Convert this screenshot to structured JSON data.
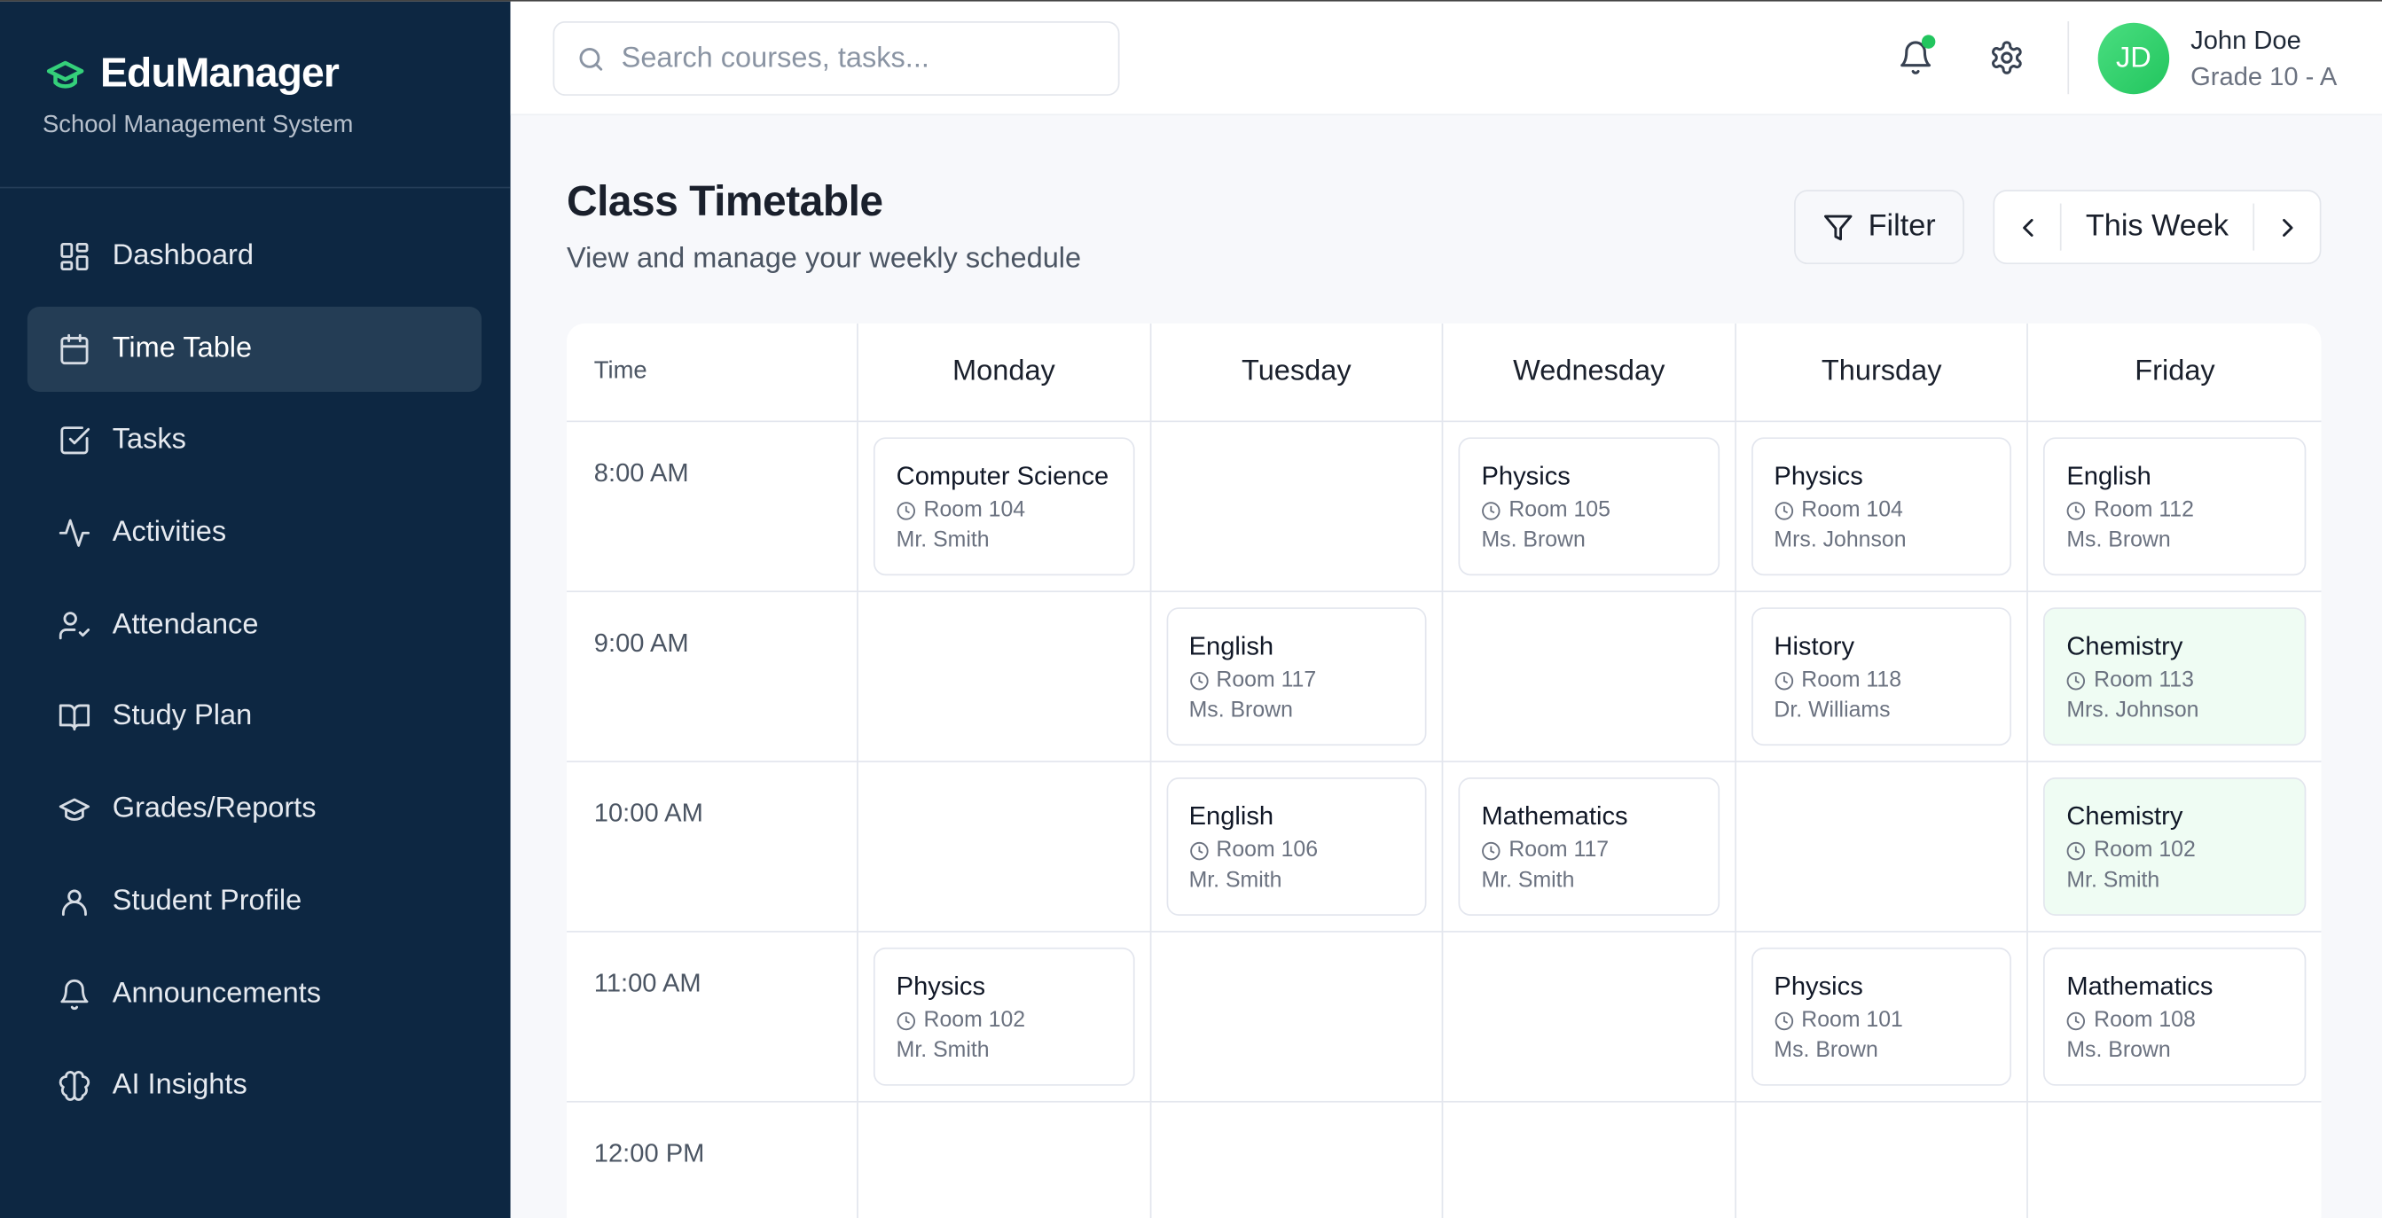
{
  "sidebar": {
    "brand": "EduManager",
    "tagline": "School Management System",
    "items": [
      {
        "label": "Dashboard",
        "icon": "dashboard-icon"
      },
      {
        "label": "Time Table",
        "icon": "calendar-icon",
        "active": true
      },
      {
        "label": "Tasks",
        "icon": "checkbox-icon"
      },
      {
        "label": "Activities",
        "icon": "activity-icon"
      },
      {
        "label": "Attendance",
        "icon": "user-check-icon"
      },
      {
        "label": "Study Plan",
        "icon": "book-icon"
      },
      {
        "label": "Grades/Reports",
        "icon": "graduation-cap-icon"
      },
      {
        "label": "Student Profile",
        "icon": "user-icon"
      },
      {
        "label": "Announcements",
        "icon": "bell-icon"
      },
      {
        "label": "AI Insights",
        "icon": "brain-icon"
      }
    ]
  },
  "header": {
    "search_placeholder": "Search courses, tasks...",
    "user": {
      "initials": "JD",
      "name": "John Doe",
      "grade": "Grade 10 - A"
    },
    "notification_dot_color": "#22c55e"
  },
  "page": {
    "title": "Class Timetable",
    "subtitle": "View and manage your weekly schedule",
    "filter_label": "Filter",
    "week_label": "This Week"
  },
  "timetable": {
    "time_header": "Time",
    "days": [
      "Monday",
      "Tuesday",
      "Wednesday",
      "Thursday",
      "Friday"
    ],
    "highlight_color": "#effcf3",
    "rows": [
      {
        "time": "8:00 AM",
        "cells": [
          {
            "subject": "Computer Science",
            "room": "Room 104",
            "teacher": "Mr. Smith"
          },
          null,
          {
            "subject": "Physics",
            "room": "Room 105",
            "teacher": "Ms. Brown"
          },
          {
            "subject": "Physics",
            "room": "Room 104",
            "teacher": "Mrs. Johnson"
          },
          {
            "subject": "English",
            "room": "Room 112",
            "teacher": "Ms. Brown"
          }
        ]
      },
      {
        "time": "9:00 AM",
        "cells": [
          null,
          {
            "subject": "English",
            "room": "Room 117",
            "teacher": "Ms. Brown"
          },
          null,
          {
            "subject": "History",
            "room": "Room 118",
            "teacher": "Dr. Williams"
          },
          {
            "subject": "Chemistry",
            "room": "Room 113",
            "teacher": "Mrs. Johnson",
            "highlight": true
          }
        ]
      },
      {
        "time": "10:00 AM",
        "cells": [
          null,
          {
            "subject": "English",
            "room": "Room 106",
            "teacher": "Mr. Smith"
          },
          {
            "subject": "Mathematics",
            "room": "Room 117",
            "teacher": "Mr. Smith"
          },
          null,
          {
            "subject": "Chemistry",
            "room": "Room 102",
            "teacher": "Mr. Smith",
            "highlight": true
          }
        ]
      },
      {
        "time": "11:00 AM",
        "cells": [
          {
            "subject": "Physics",
            "room": "Room 102",
            "teacher": "Mr. Smith"
          },
          null,
          null,
          {
            "subject": "Physics",
            "room": "Room 101",
            "teacher": "Ms. Brown"
          },
          {
            "subject": "Mathematics",
            "room": "Room 108",
            "teacher": "Ms. Brown"
          }
        ]
      },
      {
        "time": "12:00 PM",
        "cells": [
          null,
          null,
          null,
          null,
          null
        ]
      }
    ]
  }
}
